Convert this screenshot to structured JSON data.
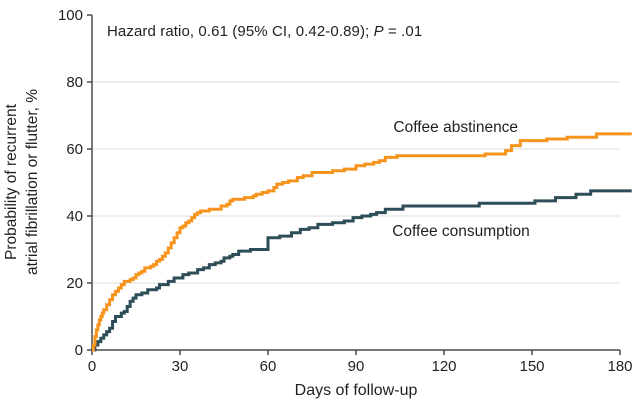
{
  "figure": {
    "annotation": {
      "full_text": "Hazard ratio, 0.61 (95% CI, 0.42-0.89); P = .01",
      "prefix": "Hazard ratio, 0.61 (95% CI, 0.42-0.89); ",
      "p_symbol": "P",
      "p_rest": " = .01"
    }
  },
  "colors": {
    "abstinence_orange": "#F7941D",
    "consumption_teal": "#2D4D58",
    "gridline": "#DEDEDE",
    "axis": "#4C4C4E",
    "text": "#231F20",
    "background": "#FFFFFF"
  },
  "chart_data": {
    "type": "line",
    "line_style": "step-after",
    "title": "",
    "xlabel": "Days of follow-up",
    "ylabel_line1": "Probability of recurrent",
    "ylabel_line2": "atrial fibrillation or flutter, %",
    "xlim": [
      0,
      180
    ],
    "ylim": [
      0,
      100
    ],
    "xticks": [
      0,
      30,
      60,
      90,
      120,
      150,
      180
    ],
    "yticks": [
      0,
      20,
      40,
      60,
      80,
      100
    ],
    "grid": "horizontal gridlines at 20, 40, 60, 80",
    "legend_position": "inline labels next to curves",
    "annotation": "Hazard ratio, 0.61 (95% CI, 0.42-0.89); P = .01",
    "series": [
      {
        "name": "Coffee abstinence",
        "color": "#F7941D",
        "label_pos": {
          "day": 124,
          "value": 65.1
        },
        "points": [
          [
            0,
            0
          ],
          [
            0.5,
            1.5
          ],
          [
            1,
            4
          ],
          [
            1.5,
            6
          ],
          [
            2,
            7.5
          ],
          [
            2.5,
            9
          ],
          [
            3,
            10
          ],
          [
            3.5,
            11
          ],
          [
            4,
            12
          ],
          [
            5,
            13.5
          ],
          [
            6,
            15
          ],
          [
            7,
            16.5
          ],
          [
            8,
            17.5
          ],
          [
            9,
            18.5
          ],
          [
            10,
            19.5
          ],
          [
            11,
            20.5
          ],
          [
            13,
            21
          ],
          [
            14,
            21.5
          ],
          [
            15,
            22.5
          ],
          [
            16,
            23
          ],
          [
            17,
            23.5
          ],
          [
            18,
            24.5
          ],
          [
            20,
            25
          ],
          [
            21,
            25.5
          ],
          [
            22,
            26.5
          ],
          [
            23,
            27
          ],
          [
            24,
            28
          ],
          [
            25,
            29
          ],
          [
            26,
            30.5
          ],
          [
            27,
            32
          ],
          [
            28,
            33.5
          ],
          [
            29,
            35
          ],
          [
            30,
            36.5
          ],
          [
            31,
            37
          ],
          [
            32,
            38
          ],
          [
            33,
            38.5
          ],
          [
            34,
            39.5
          ],
          [
            35,
            40.5
          ],
          [
            36,
            41
          ],
          [
            37,
            41.5
          ],
          [
            40,
            42
          ],
          [
            44,
            43
          ],
          [
            46,
            43.5
          ],
          [
            47,
            44.5
          ],
          [
            48,
            45
          ],
          [
            52,
            45.5
          ],
          [
            55,
            46
          ],
          [
            56,
            46.5
          ],
          [
            58,
            47
          ],
          [
            60,
            47.5
          ],
          [
            62,
            48.5
          ],
          [
            63,
            49.5
          ],
          [
            65,
            50
          ],
          [
            67,
            50.5
          ],
          [
            70,
            51.5
          ],
          [
            72,
            52
          ],
          [
            75,
            53
          ],
          [
            82,
            53.5
          ],
          [
            86,
            54
          ],
          [
            90,
            55
          ],
          [
            93,
            55.5
          ],
          [
            96,
            56
          ],
          [
            98,
            56.5
          ],
          [
            100,
            57.5
          ],
          [
            104,
            58
          ],
          [
            134,
            58.5
          ],
          [
            141,
            59.5
          ],
          [
            143,
            61
          ],
          [
            146,
            62.5
          ],
          [
            155,
            63
          ],
          [
            162,
            63.5
          ],
          [
            172,
            64.5
          ],
          [
            184,
            64.5
          ]
        ]
      },
      {
        "name": "Coffee consumption",
        "color": "#2D4D58",
        "label_pos": {
          "day": 125.8,
          "value": 34
        },
        "points": [
          [
            0,
            0
          ],
          [
            1,
            1.5
          ],
          [
            2,
            2.5
          ],
          [
            3,
            3.5
          ],
          [
            4,
            4.5
          ],
          [
            5,
            5.5
          ],
          [
            6,
            6.5
          ],
          [
            7,
            8.5
          ],
          [
            8,
            10
          ],
          [
            10,
            11
          ],
          [
            11,
            11.5
          ],
          [
            12,
            13
          ],
          [
            13,
            14.5
          ],
          [
            14,
            15.5
          ],
          [
            15,
            16.5
          ],
          [
            17,
            17
          ],
          [
            19,
            18
          ],
          [
            22,
            18.5
          ],
          [
            23,
            19.5
          ],
          [
            26,
            20.5
          ],
          [
            28,
            21.5
          ],
          [
            31,
            22.5
          ],
          [
            33,
            23
          ],
          [
            36,
            24
          ],
          [
            38,
            24.5
          ],
          [
            40,
            25.5
          ],
          [
            42,
            26
          ],
          [
            44,
            26.5
          ],
          [
            45,
            27.5
          ],
          [
            47,
            28
          ],
          [
            48,
            28.5
          ],
          [
            50,
            29.5
          ],
          [
            54,
            30
          ],
          [
            60,
            33.5
          ],
          [
            64,
            34
          ],
          [
            68,
            35
          ],
          [
            71,
            36
          ],
          [
            74,
            36.5
          ],
          [
            77,
            37.5
          ],
          [
            82,
            38
          ],
          [
            86,
            38.5
          ],
          [
            89,
            39.5
          ],
          [
            92,
            40
          ],
          [
            95,
            40.5
          ],
          [
            97,
            41
          ],
          [
            100,
            42
          ],
          [
            106,
            43
          ],
          [
            132,
            43.8
          ],
          [
            151,
            44.5
          ],
          [
            158,
            45.5
          ],
          [
            165,
            46.5
          ],
          [
            170,
            47.5
          ],
          [
            184,
            47.5
          ]
        ]
      }
    ]
  }
}
